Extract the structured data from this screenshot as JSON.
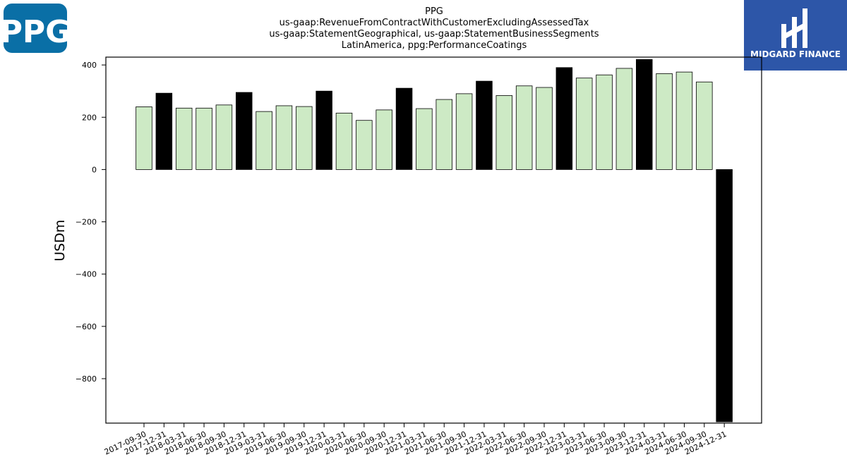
{
  "brand": {
    "company_logo_text": "PPG",
    "company_logo_color": "#0a6fa6",
    "finance_logo_text": "MIDGARD FINANCE",
    "finance_logo_color": "#2d56a8"
  },
  "chart_data": {
    "type": "bar",
    "title": [
      "PPG",
      "us-gaap:RevenueFromContractWithCustomerExcludingAssessedTax",
      "us-gaap:StatementGeographical, us-gaap:StatementBusinessSegments",
      "LatinAmerica, ppg:PerformanceCoatings"
    ],
    "xlabel": "",
    "ylabel": "USDm",
    "ylim": [
      -970,
      430
    ],
    "yticks": [
      400,
      200,
      0,
      -200,
      -400,
      -600,
      -800
    ],
    "yticklabels": [
      "400",
      "200",
      "0",
      "−200",
      "−400",
      "−600",
      "−800"
    ],
    "grid": false,
    "categories": [
      "2017-09-30",
      "2017-12-31",
      "2018-03-31",
      "2018-06-30",
      "2018-09-30",
      "2018-12-31",
      "2019-03-31",
      "2019-06-30",
      "2019-09-30",
      "2019-12-31",
      "2020-03-31",
      "2020-06-30",
      "2020-09-30",
      "2020-12-31",
      "2021-03-31",
      "2021-06-30",
      "2021-09-30",
      "2021-12-31",
      "2022-03-31",
      "2022-06-30",
      "2022-09-30",
      "2022-12-31",
      "2023-03-31",
      "2023-06-30",
      "2023-09-30",
      "2023-12-31",
      "2024-03-31",
      "2024-06-30",
      "2024-09-30",
      "2024-12-31"
    ],
    "values": [
      240,
      292,
      235,
      235,
      247,
      295,
      222,
      244,
      241,
      300,
      216,
      188,
      228,
      311,
      233,
      268,
      290,
      338,
      283,
      320,
      314,
      390,
      350,
      362,
      387,
      421,
      367,
      373,
      335,
      -965
    ],
    "bar_colors": [
      "#cdeac5",
      "#000000",
      "#cdeac5",
      "#cdeac5",
      "#cdeac5",
      "#000000",
      "#cdeac5",
      "#cdeac5",
      "#cdeac5",
      "#000000",
      "#cdeac5",
      "#cdeac5",
      "#cdeac5",
      "#000000",
      "#cdeac5",
      "#cdeac5",
      "#cdeac5",
      "#000000",
      "#cdeac5",
      "#cdeac5",
      "#cdeac5",
      "#000000",
      "#cdeac5",
      "#cdeac5",
      "#cdeac5",
      "#000000",
      "#cdeac5",
      "#cdeac5",
      "#cdeac5",
      "#000000"
    ]
  }
}
